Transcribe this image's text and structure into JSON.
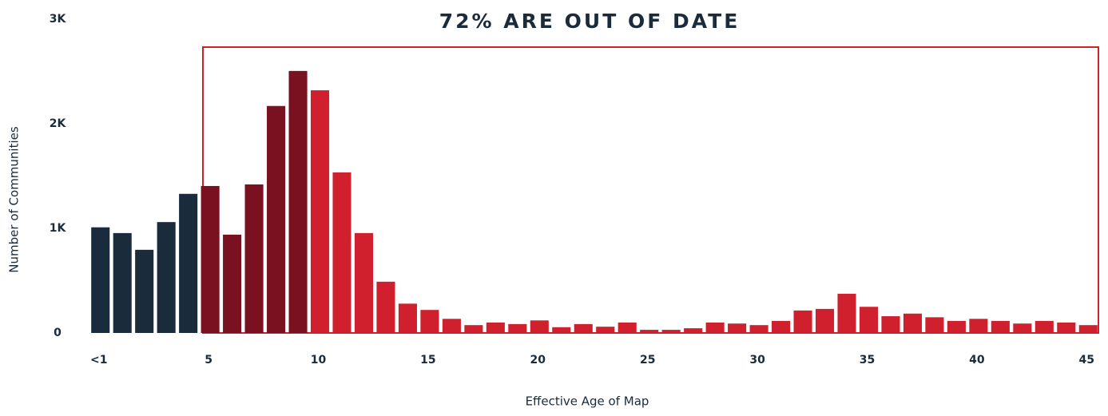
{
  "chart_data": {
    "type": "bar",
    "title": "72% ARE OUT OF DATE",
    "x_label": "Effective Age of Map",
    "y_label": "Number of Communities",
    "categories": [
      "<1",
      null,
      null,
      null,
      null,
      "5",
      null,
      null,
      null,
      null,
      "10",
      null,
      null,
      null,
      null,
      "15",
      null,
      null,
      null,
      null,
      "20",
      null,
      null,
      null,
      null,
      "25",
      null,
      null,
      null,
      null,
      "30",
      null,
      null,
      null,
      null,
      "35",
      null,
      null,
      null,
      null,
      "40",
      null,
      null,
      null,
      null,
      "45"
    ],
    "values": [
      1010,
      955,
      795,
      1060,
      1330,
      1405,
      940,
      1420,
      2170,
      2505,
      2320,
      1535,
      955,
      490,
      280,
      220,
      135,
      75,
      100,
      85,
      120,
      55,
      85,
      60,
      100,
      30,
      30,
      45,
      100,
      90,
      75,
      115,
      215,
      230,
      375,
      250,
      160,
      185,
      150,
      115,
      135,
      115,
      90,
      115,
      100,
      75
    ],
    "colors": [
      "#1a2b3c",
      "#1a2b3c",
      "#1a2b3c",
      "#1a2b3c",
      "#1a2b3c",
      "#7a1120",
      "#7a1120",
      "#7a1120",
      "#7a1120",
      "#7a1120",
      "#d0202e",
      "#d0202e",
      "#d0202e",
      "#d0202e",
      "#d0202e",
      "#d0202e",
      "#d0202e",
      "#d0202e",
      "#d0202e",
      "#d0202e",
      "#d0202e",
      "#d0202e",
      "#d0202e",
      "#d0202e",
      "#d0202e",
      "#d0202e",
      "#d0202e",
      "#d0202e",
      "#d0202e",
      "#d0202e",
      "#d0202e",
      "#d0202e",
      "#d0202e",
      "#d0202e",
      "#d0202e",
      "#d0202e",
      "#d0202e",
      "#d0202e",
      "#d0202e",
      "#d0202e",
      "#d0202e",
      "#d0202e",
      "#d0202e",
      "#d0202e",
      "#d0202e",
      "#d0202e"
    ],
    "ylim": [
      0,
      3000
    ],
    "yticks": [
      0,
      {
        "value": 1000,
        "label": "1K"
      },
      {
        "value": 2000,
        "label": "2K"
      },
      {
        "value": 3000,
        "label": "3K"
      }
    ],
    "grid": false
  }
}
